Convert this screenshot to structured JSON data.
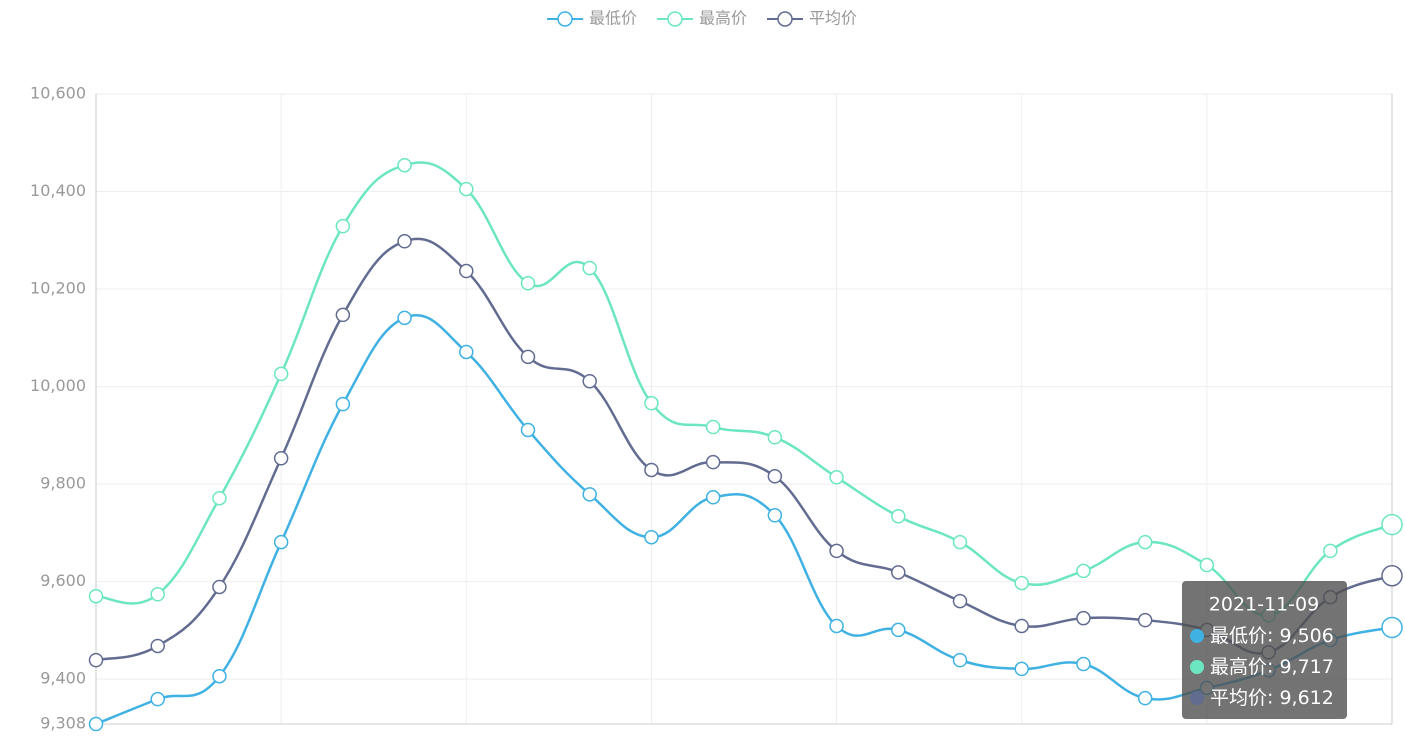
{
  "chart_data": {
    "type": "line",
    "categories": [
      null,
      null,
      null,
      null,
      null,
      null,
      null,
      null,
      null,
      null,
      null,
      null,
      null,
      null,
      null,
      null,
      null,
      null,
      null,
      null,
      null,
      "2021-11-09"
    ],
    "series": [
      {
        "name": "最低价",
        "color": "#3fb1e3",
        "values": [
          9308,
          9359,
          9406,
          9681,
          9964,
          10141,
          10071,
          9911,
          9779,
          9691,
          9773,
          9736,
          9509,
          9501,
          9439,
          9421,
          9431,
          9361,
          9382,
          9418,
          9480,
          9506
        ],
        "value_labels": [
          null,
          null,
          null,
          null,
          null,
          null,
          null,
          null,
          null,
          null,
          null,
          null,
          null,
          null,
          null,
          null,
          null,
          null,
          null,
          null,
          null,
          "9,506"
        ]
      },
      {
        "name": "最高价",
        "color": "#6be6c1",
        "values": [
          9570,
          9574,
          9771,
          10026,
          10329,
          10454,
          10405,
          10212,
          10243,
          9966,
          9917,
          9896,
          9814,
          9734,
          9681,
          9597,
          9622,
          9681,
          9634,
          9531,
          9663,
          9717
        ],
        "value_labels": [
          null,
          null,
          null,
          null,
          null,
          null,
          null,
          null,
          null,
          null,
          null,
          null,
          null,
          null,
          null,
          null,
          null,
          null,
          null,
          null,
          null,
          "9,717"
        ]
      },
      {
        "name": "平均价",
        "color": "#626c91",
        "values": [
          9439,
          9468,
          9589,
          9853,
          10147,
          10298,
          10237,
          10061,
          10011,
          9829,
          9845,
          9816,
          9663,
          9619,
          9560,
          9509,
          9525,
          9521,
          9501,
          9455,
          9568,
          9612
        ],
        "value_labels": [
          null,
          null,
          null,
          null,
          null,
          null,
          null,
          null,
          null,
          null,
          null,
          null,
          null,
          null,
          null,
          null,
          null,
          null,
          null,
          null,
          null,
          "9,612"
        ]
      }
    ],
    "ylim": [
      9308,
      10600
    ],
    "yticks": [
      {
        "value": 9308,
        "label": "9,308"
      },
      {
        "value": 9400,
        "label": "9,400"
      },
      {
        "value": 9600,
        "label": "9,600"
      },
      {
        "value": 9800,
        "label": "9,800"
      },
      {
        "value": 10000,
        "label": "10,000"
      },
      {
        "value": 10200,
        "label": "10,200"
      },
      {
        "value": 10400,
        "label": "10,400"
      },
      {
        "value": 10600,
        "label": "10,600"
      }
    ],
    "grid": true,
    "smooth": true,
    "legend": "top"
  }
}
